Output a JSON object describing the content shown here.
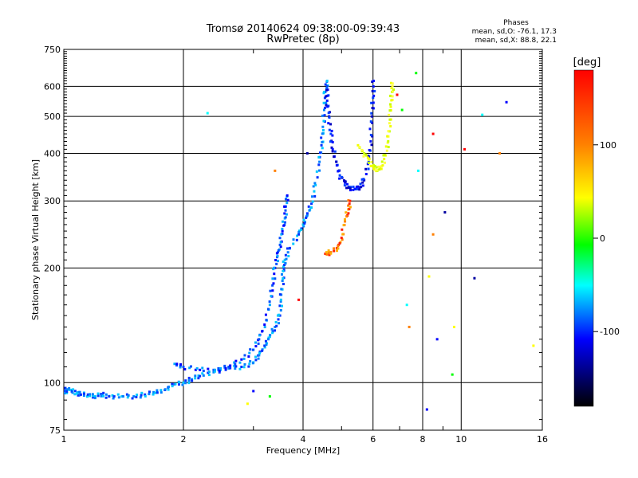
{
  "chart_data": {
    "type": "scatter",
    "title": "Tromsø 20140624 09:38:00-09:39:43",
    "subtitle": "RwPretec (8p)",
    "xlabel": "Frequency [MHz]",
    "ylabel": "Stationary phase Virtual Height [km]",
    "x_scale": "log",
    "y_scale": "log",
    "xlim": [
      1,
      16
    ],
    "ylim": [
      75,
      750
    ],
    "x_ticks": [
      1,
      2,
      4,
      6,
      8,
      10,
      16
    ],
    "y_ticks": [
      75,
      100,
      200,
      300,
      400,
      500,
      600,
      750
    ],
    "grid": true,
    "phases": {
      "heading": "Phases",
      "line_o": "mean, sd,O: -76.1, 17.3",
      "line_x": "mean, sd,X:  88.8, 22.1"
    },
    "colorbar": {
      "label": "[deg]",
      "range": [
        -180,
        180
      ],
      "ticks": [
        100,
        0,
        -100
      ],
      "colors": [
        "#ff0000",
        "#ff8000",
        "#ffff00",
        "#00ff00",
        "#00ffff",
        "#0000ff",
        "#000000"
      ]
    },
    "series": [
      {
        "values": [
          [
            1.0,
            94
          ],
          [
            1.02,
            96
          ],
          [
            1.05,
            95
          ],
          [
            1.08,
            94
          ],
          [
            1.1,
            93
          ],
          [
            1.15,
            93
          ],
          [
            1.2,
            92
          ],
          [
            1.25,
            93
          ],
          [
            1.3,
            92
          ],
          [
            1.4,
            92
          ],
          [
            1.5,
            92
          ],
          [
            1.6,
            93
          ],
          [
            1.7,
            94
          ],
          [
            1.8,
            96
          ],
          [
            1.9,
            99
          ],
          [
            2.0,
            100
          ],
          [
            2.1,
            102
          ],
          [
            2.2,
            104
          ],
          [
            2.4,
            107
          ],
          [
            2.6,
            109
          ],
          [
            2.8,
            110
          ],
          [
            3.0,
            113
          ],
          [
            3.1,
            118
          ],
          [
            3.2,
            125
          ],
          [
            3.3,
            132
          ],
          [
            3.4,
            140
          ],
          [
            3.5,
            150
          ],
          [
            3.52,
            165
          ],
          [
            3.55,
            185
          ],
          [
            3.58,
            200
          ],
          [
            3.6,
            210
          ],
          [
            3.7,
            225
          ],
          [
            3.9,
            245
          ],
          [
            4.0,
            260
          ],
          [
            4.1,
            275
          ],
          [
            4.2,
            295
          ],
          [
            4.3,
            330
          ],
          [
            4.4,
            380
          ],
          [
            4.45,
            420
          ],
          [
            4.5,
            460
          ],
          [
            4.52,
            520
          ],
          [
            4.55,
            580
          ],
          [
            4.6,
            620
          ]
        ]
      },
      {
        "values": [
          [
            1.9,
            112
          ],
          [
            2.0,
            110
          ],
          [
            2.2,
            108
          ],
          [
            2.4,
            108
          ],
          [
            2.6,
            110
          ],
          [
            2.8,
            115
          ],
          [
            3.0,
            122
          ],
          [
            3.1,
            130
          ],
          [
            3.2,
            142
          ],
          [
            3.3,
            160
          ],
          [
            3.35,
            180
          ],
          [
            3.4,
            200
          ],
          [
            3.45,
            215
          ],
          [
            3.5,
            230
          ],
          [
            3.55,
            250
          ],
          [
            3.6,
            270
          ],
          [
            3.62,
            290
          ],
          [
            3.65,
            310
          ]
        ]
      },
      {
        "values": [
          [
            4.6,
            600
          ],
          [
            4.6,
            550
          ],
          [
            4.65,
            500
          ],
          [
            4.7,
            450
          ],
          [
            4.75,
            410
          ],
          [
            4.85,
            380
          ],
          [
            4.95,
            350
          ],
          [
            5.1,
            335
          ],
          [
            5.2,
            325
          ],
          [
            5.4,
            322
          ],
          [
            5.55,
            326
          ],
          [
            5.7,
            340
          ],
          [
            5.85,
            380
          ],
          [
            5.92,
            430
          ],
          [
            5.96,
            500
          ],
          [
            6.0,
            560
          ],
          [
            6.02,
            620
          ]
        ]
      },
      {
        "values": [
          [
            5.5,
            420
          ],
          [
            5.7,
            400
          ],
          [
            5.85,
            385
          ],
          [
            6.0,
            370
          ],
          [
            6.15,
            360
          ],
          [
            6.3,
            370
          ],
          [
            6.45,
            395
          ],
          [
            6.55,
            430
          ],
          [
            6.6,
            480
          ],
          [
            6.65,
            530
          ],
          [
            6.7,
            580
          ],
          [
            6.72,
            610
          ]
        ]
      },
      {
        "values": [
          [
            4.55,
            218
          ],
          [
            4.7,
            220
          ],
          [
            4.9,
            225
          ],
          [
            5.0,
            240
          ],
          [
            5.1,
            265
          ],
          [
            5.2,
            285
          ],
          [
            5.25,
            300
          ]
        ]
      },
      {
        "values": [
          [
            2.3,
            510
          ],
          [
            3.4,
            360
          ],
          [
            3.0,
            95
          ],
          [
            2.9,
            88
          ],
          [
            3.3,
            92
          ],
          [
            3.9,
            165
          ],
          [
            4.1,
            400
          ],
          [
            7.3,
            160
          ],
          [
            7.4,
            140
          ],
          [
            8.2,
            85
          ],
          [
            8.3,
            190
          ],
          [
            9.5,
            105
          ],
          [
            10.2,
            410
          ],
          [
            10.8,
            188
          ],
          [
            11.3,
            505
          ],
          [
            12.5,
            400
          ],
          [
            13.0,
            545
          ],
          [
            15.2,
            125
          ],
          [
            7.7,
            650
          ],
          [
            8.5,
            450
          ],
          [
            9.1,
            280
          ],
          [
            7.8,
            360
          ],
          [
            8.5,
            245
          ],
          [
            8.7,
            130
          ],
          [
            9.6,
            140
          ],
          [
            7.1,
            520
          ],
          [
            6.9,
            570
          ]
        ]
      }
    ]
  }
}
